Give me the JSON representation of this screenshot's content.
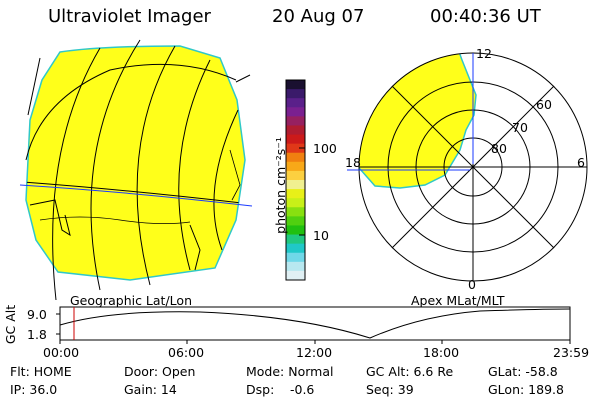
{
  "header": {
    "title": "Ultraviolet Imager",
    "date": "20 Aug 07",
    "time": "00:40:36 UT"
  },
  "colorbar": {
    "label": "photon cm⁻²s⁻¹",
    "ticks": [
      "100",
      "10"
    ],
    "colors": [
      "#1a1030",
      "#3a1a6a",
      "#5a208a",
      "#7a2090",
      "#962060",
      "#b01c30",
      "#cc1a1a",
      "#e03818",
      "#f08010",
      "#f8a818",
      "#fcd040",
      "#f0f090",
      "#e8f018",
      "#c8f018",
      "#88e010",
      "#50d010",
      "#20c010",
      "#20c880",
      "#20c8c8",
      "#70d8e8",
      "#b8e8f0",
      "#e0f0f4"
    ]
  },
  "left_map": {
    "caption": "Geographic Lat/Lon"
  },
  "right_map": {
    "caption": "Apex MLat/MLT",
    "lat_labels": [
      "60",
      "70",
      "80"
    ],
    "mlt_labels": {
      "top": "12",
      "left": "18",
      "right": "6",
      "bottom": "0"
    }
  },
  "altitude_plot": {
    "ylabel": "GC Alt",
    "yticks": [
      "9.0",
      "1.8"
    ],
    "xticks": [
      "00:00",
      "06:00",
      "12:00",
      "18:00",
      "23:59"
    ]
  },
  "footer": {
    "row1": [
      "Flt: HOME",
      "Door: Open",
      "Mode: Normal",
      "GC Alt: 6.6 Re",
      "GLat: -58.8"
    ],
    "row2": [
      "IP: 36.0",
      "Gain: 14",
      "Dsp:",
      "-0.6",
      "Seq: 39",
      "GLon: 189.8"
    ]
  }
}
